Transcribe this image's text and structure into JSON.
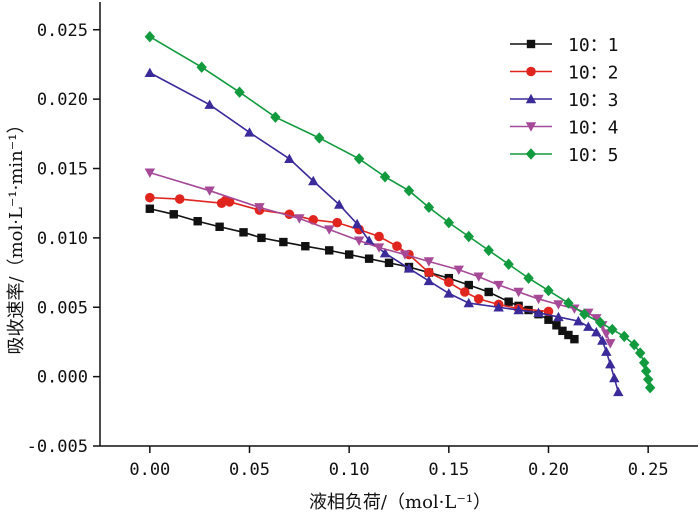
{
  "chart_data": {
    "type": "line",
    "title": "",
    "xlabel": "液相负荷/（mol·L⁻¹）",
    "ylabel": "吸收速率/（mol·L⁻¹·min⁻¹）",
    "xlim": [
      -0.025,
      0.275
    ],
    "ylim": [
      -0.005,
      0.027
    ],
    "xticks": [
      "0.00",
      "0.05",
      "0.10",
      "0.15",
      "0.20",
      "0.25"
    ],
    "xtick_values": [
      0.0,
      0.05,
      0.1,
      0.15,
      0.2,
      0.25
    ],
    "yticks": [
      "-0.005",
      "0.000",
      "0.005",
      "0.010",
      "0.015",
      "0.020",
      "0.025"
    ],
    "ytick_values": [
      -0.005,
      0.0,
      0.005,
      0.01,
      0.015,
      0.02,
      0.025
    ],
    "grid": false,
    "legend_position": "top-right",
    "series": [
      {
        "name": "10：1",
        "color": "#111111",
        "marker": "square",
        "points": [
          [
            0.0,
            0.0121
          ],
          [
            0.012,
            0.0117
          ],
          [
            0.024,
            0.0112
          ],
          [
            0.035,
            0.0108
          ],
          [
            0.047,
            0.0104
          ],
          [
            0.056,
            0.01
          ],
          [
            0.067,
            0.0097
          ],
          [
            0.078,
            0.0094
          ],
          [
            0.09,
            0.0091
          ],
          [
            0.1,
            0.0088
          ],
          [
            0.11,
            0.0085
          ],
          [
            0.12,
            0.0082
          ],
          [
            0.13,
            0.0079
          ],
          [
            0.14,
            0.0075
          ],
          [
            0.15,
            0.0071
          ],
          [
            0.16,
            0.0066
          ],
          [
            0.17,
            0.0061
          ],
          [
            0.18,
            0.0054
          ],
          [
            0.185,
            0.0051
          ],
          [
            0.19,
            0.0048
          ],
          [
            0.195,
            0.0045
          ],
          [
            0.2,
            0.0041
          ],
          [
            0.204,
            0.0037
          ],
          [
            0.207,
            0.0033
          ],
          [
            0.21,
            0.003
          ],
          [
            0.213,
            0.0027
          ]
        ]
      },
      {
        "name": "10：2",
        "color": "#e0251f",
        "marker": "circle",
        "points": [
          [
            0.0,
            0.0129
          ],
          [
            0.015,
            0.0128
          ],
          [
            0.036,
            0.0125
          ],
          [
            0.038,
            0.0127
          ],
          [
            0.04,
            0.0126
          ],
          [
            0.055,
            0.012
          ],
          [
            0.07,
            0.0117
          ],
          [
            0.082,
            0.0113
          ],
          [
            0.094,
            0.0111
          ],
          [
            0.105,
            0.0106
          ],
          [
            0.115,
            0.0101
          ],
          [
            0.124,
            0.0094
          ],
          [
            0.13,
            0.0088
          ],
          [
            0.14,
            0.0075
          ],
          [
            0.15,
            0.0068
          ],
          [
            0.158,
            0.0061
          ],
          [
            0.165,
            0.0056
          ],
          [
            0.175,
            0.0052
          ],
          [
            0.185,
            0.0049
          ],
          [
            0.2,
            0.0047
          ]
        ]
      },
      {
        "name": "10：3",
        "color": "#3a2a9a",
        "marker": "triangle-up",
        "points": [
          [
            0.0,
            0.0219
          ],
          [
            0.03,
            0.0196
          ],
          [
            0.05,
            0.0176
          ],
          [
            0.07,
            0.0157
          ],
          [
            0.082,
            0.0141
          ],
          [
            0.095,
            0.0124
          ],
          [
            0.104,
            0.011
          ],
          [
            0.11,
            0.0098
          ],
          [
            0.118,
            0.0089
          ],
          [
            0.13,
            0.0078
          ],
          [
            0.14,
            0.0069
          ],
          [
            0.15,
            0.006
          ],
          [
            0.16,
            0.0053
          ],
          [
            0.175,
            0.005
          ],
          [
            0.185,
            0.0048
          ],
          [
            0.195,
            0.0046
          ],
          [
            0.205,
            0.0043
          ],
          [
            0.215,
            0.004
          ],
          [
            0.22,
            0.0036
          ],
          [
            0.224,
            0.0032
          ],
          [
            0.227,
            0.0026
          ],
          [
            0.229,
            0.0018
          ],
          [
            0.231,
            0.0009
          ],
          [
            0.233,
            -0.0001
          ],
          [
            0.235,
            -0.0011
          ]
        ]
      },
      {
        "name": "10：4",
        "color": "#a64a98",
        "marker": "triangle-down",
        "points": [
          [
            0.0,
            0.0147
          ],
          [
            0.03,
            0.0134
          ],
          [
            0.055,
            0.0122
          ],
          [
            0.075,
            0.0114
          ],
          [
            0.09,
            0.0106
          ],
          [
            0.105,
            0.0098
          ],
          [
            0.115,
            0.0093
          ],
          [
            0.128,
            0.0088
          ],
          [
            0.14,
            0.0083
          ],
          [
            0.155,
            0.0077
          ],
          [
            0.165,
            0.0072
          ],
          [
            0.175,
            0.0066
          ],
          [
            0.185,
            0.0061
          ],
          [
            0.195,
            0.0056
          ],
          [
            0.205,
            0.0052
          ],
          [
            0.213,
            0.0049
          ],
          [
            0.22,
            0.0046
          ],
          [
            0.224,
            0.0042
          ],
          [
            0.227,
            0.0037
          ],
          [
            0.229,
            0.0031
          ],
          [
            0.231,
            0.0024
          ]
        ]
      },
      {
        "name": "10：5",
        "color": "#129a3e",
        "marker": "diamond",
        "points": [
          [
            0.0,
            0.0245
          ],
          [
            0.026,
            0.0223
          ],
          [
            0.045,
            0.0205
          ],
          [
            0.063,
            0.0187
          ],
          [
            0.085,
            0.0172
          ],
          [
            0.105,
            0.0157
          ],
          [
            0.118,
            0.0144
          ],
          [
            0.13,
            0.0134
          ],
          [
            0.14,
            0.0122
          ],
          [
            0.15,
            0.0111
          ],
          [
            0.16,
            0.0101
          ],
          [
            0.17,
            0.0091
          ],
          [
            0.18,
            0.0081
          ],
          [
            0.19,
            0.0071
          ],
          [
            0.2,
            0.0062
          ],
          [
            0.21,
            0.0053
          ],
          [
            0.218,
            0.0045
          ],
          [
            0.226,
            0.0039
          ],
          [
            0.232,
            0.0034
          ],
          [
            0.238,
            0.0029
          ],
          [
            0.243,
            0.0023
          ],
          [
            0.246,
            0.0017
          ],
          [
            0.248,
            0.001
          ],
          [
            0.249,
            0.0004
          ],
          [
            0.25,
            -0.0002
          ],
          [
            0.251,
            -0.0008
          ]
        ]
      }
    ]
  }
}
